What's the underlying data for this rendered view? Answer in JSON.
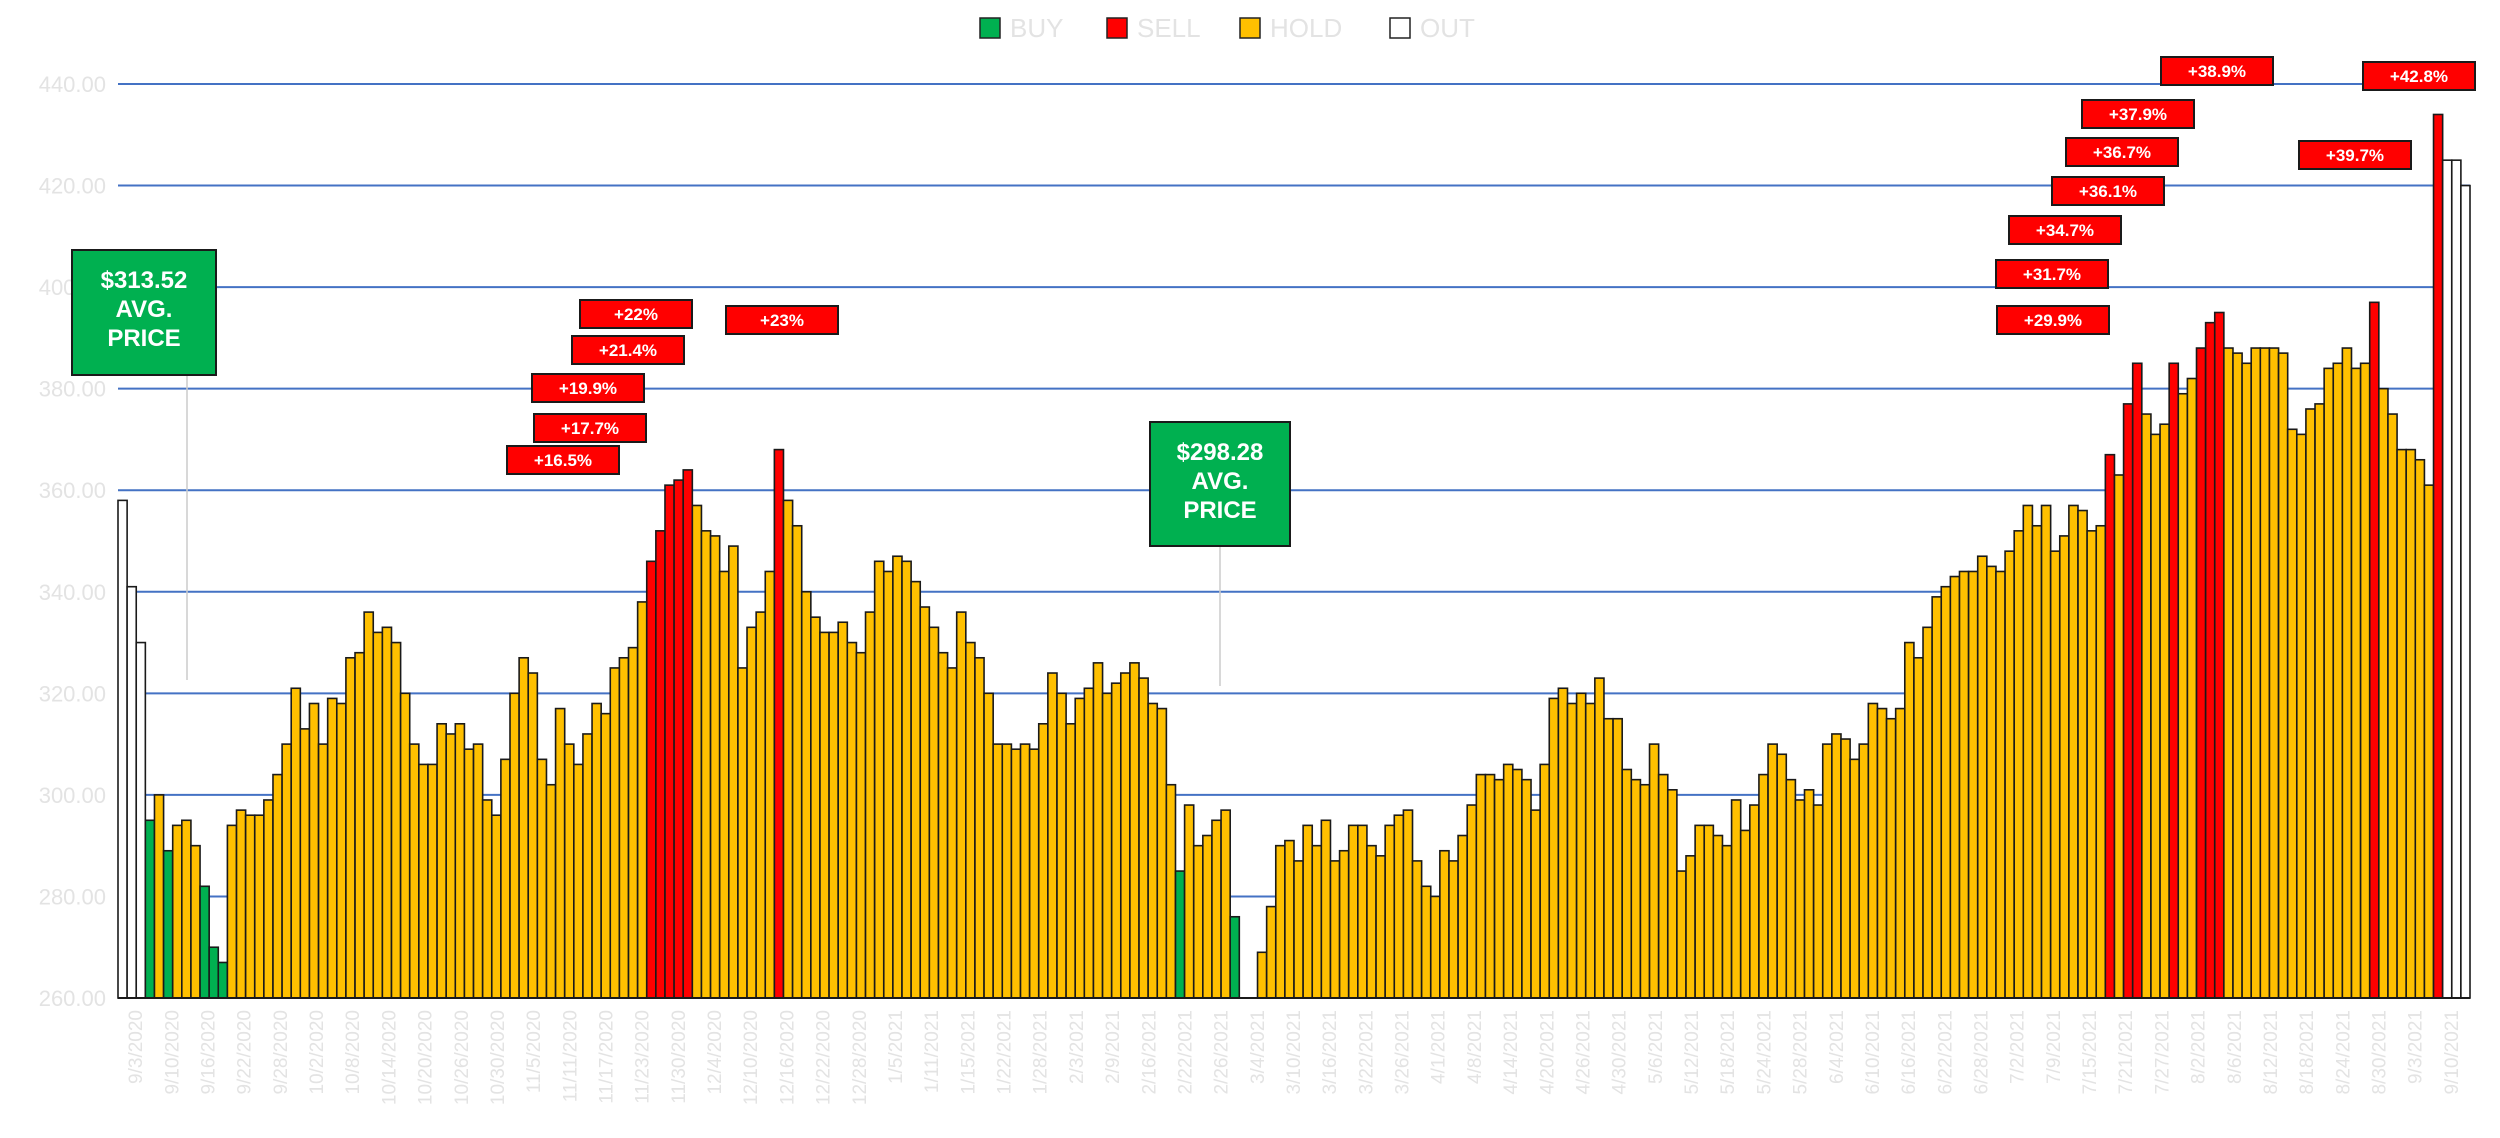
{
  "colors": {
    "buy": "#00b050",
    "sell": "#ff0000",
    "hold": "#ffc000",
    "out": "#ffffff",
    "gridline": "#4472c4",
    "tick_text": "#e3e3e3"
  },
  "legend": [
    {
      "label": "BUY",
      "status": "buy"
    },
    {
      "label": "SELL",
      "status": "sell"
    },
    {
      "label": "HOLD",
      "status": "hold"
    },
    {
      "label": "OUT",
      "status": "out"
    }
  ],
  "chart_data": {
    "type": "bar",
    "ylim": [
      260,
      440
    ],
    "y_ticks": [
      "260.00",
      "280.00",
      "300.00",
      "320.00",
      "340.00",
      "360.00",
      "380.00",
      "400.00",
      "420.00",
      "440.00"
    ],
    "x_tick_labels": [
      "9/3/2020",
      "9/10/2020",
      "9/16/2020",
      "9/22/2020",
      "9/28/2020",
      "10/2/2020",
      "10/8/2020",
      "10/14/2020",
      "10/20/2020",
      "10/26/2020",
      "10/30/2020",
      "11/5/2020",
      "11/11/2020",
      "11/17/2020",
      "11/23/2020",
      "11/30/2020",
      "12/4/2020",
      "12/10/2020",
      "12/16/2020",
      "12/22/2020",
      "12/28/2020",
      "1/5/2021",
      "1/11/2021",
      "1/15/2021",
      "1/22/2021",
      "1/28/2021",
      "2/3/2021",
      "2/9/2021",
      "2/16/2021",
      "2/22/2021",
      "2/26/2021",
      "3/4/2021",
      "3/10/2021",
      "3/16/2021",
      "3/22/2021",
      "3/26/2021",
      "4/1/2021",
      "4/8/2021",
      "4/14/2021",
      "4/20/2021",
      "4/26/2021",
      "4/30/2021",
      "5/6/2021",
      "5/12/2021",
      "5/18/2021",
      "5/24/2021",
      "5/28/2021",
      "6/4/2021",
      "6/10/2021",
      "6/16/2021",
      "6/22/2021",
      "6/28/2021",
      "7/2/2021",
      "7/9/2021",
      "7/15/2021",
      "7/21/2021",
      "7/27/2021",
      "8/2/2021",
      "8/6/2021",
      "8/12/2021",
      "8/18/2021",
      "8/24/2021",
      "8/30/2021",
      "9/3/2021",
      "9/10/2021"
    ],
    "bars": [
      {
        "v": 358,
        "s": "out"
      },
      {
        "v": 341,
        "s": "out"
      },
      {
        "v": 330,
        "s": "out"
      },
      {
        "v": 295,
        "s": "buy"
      },
      {
        "v": 300,
        "s": "hold"
      },
      {
        "v": 289,
        "s": "buy"
      },
      {
        "v": 294,
        "s": "hold"
      },
      {
        "v": 295,
        "s": "hold"
      },
      {
        "v": 290,
        "s": "hold"
      },
      {
        "v": 282,
        "s": "buy"
      },
      {
        "v": 270,
        "s": "buy"
      },
      {
        "v": 267,
        "s": "buy"
      },
      {
        "v": 294,
        "s": "hold"
      },
      {
        "v": 297,
        "s": "hold"
      },
      {
        "v": 296,
        "s": "hold"
      },
      {
        "v": 296,
        "s": "hold"
      },
      {
        "v": 299,
        "s": "hold"
      },
      {
        "v": 304,
        "s": "hold"
      },
      {
        "v": 310,
        "s": "hold"
      },
      {
        "v": 321,
        "s": "hold"
      },
      {
        "v": 313,
        "s": "hold"
      },
      {
        "v": 318,
        "s": "hold"
      },
      {
        "v": 310,
        "s": "hold"
      },
      {
        "v": 319,
        "s": "hold"
      },
      {
        "v": 318,
        "s": "hold"
      },
      {
        "v": 327,
        "s": "hold"
      },
      {
        "v": 328,
        "s": "hold"
      },
      {
        "v": 336,
        "s": "hold"
      },
      {
        "v": 332,
        "s": "hold"
      },
      {
        "v": 333,
        "s": "hold"
      },
      {
        "v": 330,
        "s": "hold"
      },
      {
        "v": 320,
        "s": "hold"
      },
      {
        "v": 310,
        "s": "hold"
      },
      {
        "v": 306,
        "s": "hold"
      },
      {
        "v": 306,
        "s": "hold"
      },
      {
        "v": 314,
        "s": "hold"
      },
      {
        "v": 312,
        "s": "hold"
      },
      {
        "v": 314,
        "s": "hold"
      },
      {
        "v": 309,
        "s": "hold"
      },
      {
        "v": 310,
        "s": "hold"
      },
      {
        "v": 299,
        "s": "hold"
      },
      {
        "v": 296,
        "s": "hold"
      },
      {
        "v": 307,
        "s": "hold"
      },
      {
        "v": 320,
        "s": "hold"
      },
      {
        "v": 327,
        "s": "hold"
      },
      {
        "v": 324,
        "s": "hold"
      },
      {
        "v": 307,
        "s": "hold"
      },
      {
        "v": 302,
        "s": "hold"
      },
      {
        "v": 317,
        "s": "hold"
      },
      {
        "v": 310,
        "s": "hold"
      },
      {
        "v": 306,
        "s": "hold"
      },
      {
        "v": 312,
        "s": "hold"
      },
      {
        "v": 318,
        "s": "hold"
      },
      {
        "v": 316,
        "s": "hold"
      },
      {
        "v": 325,
        "s": "hold"
      },
      {
        "v": 327,
        "s": "hold"
      },
      {
        "v": 329,
        "s": "hold"
      },
      {
        "v": 338,
        "s": "hold"
      },
      {
        "v": 346,
        "s": "sell"
      },
      {
        "v": 352,
        "s": "sell"
      },
      {
        "v": 361,
        "s": "sell"
      },
      {
        "v": 362,
        "s": "sell"
      },
      {
        "v": 364,
        "s": "sell"
      },
      {
        "v": 357,
        "s": "hold"
      },
      {
        "v": 352,
        "s": "hold"
      },
      {
        "v": 351,
        "s": "hold"
      },
      {
        "v": 344,
        "s": "hold"
      },
      {
        "v": 349,
        "s": "hold"
      },
      {
        "v": 325,
        "s": "hold"
      },
      {
        "v": 333,
        "s": "hold"
      },
      {
        "v": 336,
        "s": "hold"
      },
      {
        "v": 344,
        "s": "hold"
      },
      {
        "v": 368,
        "s": "sell"
      },
      {
        "v": 358,
        "s": "hold"
      },
      {
        "v": 353,
        "s": "hold"
      },
      {
        "v": 340,
        "s": "hold"
      },
      {
        "v": 335,
        "s": "hold"
      },
      {
        "v": 332,
        "s": "hold"
      },
      {
        "v": 332,
        "s": "hold"
      },
      {
        "v": 334,
        "s": "hold"
      },
      {
        "v": 330,
        "s": "hold"
      },
      {
        "v": 328,
        "s": "hold"
      },
      {
        "v": 336,
        "s": "hold"
      },
      {
        "v": 346,
        "s": "hold"
      },
      {
        "v": 344,
        "s": "hold"
      },
      {
        "v": 347,
        "s": "hold"
      },
      {
        "v": 346,
        "s": "hold"
      },
      {
        "v": 342,
        "s": "hold"
      },
      {
        "v": 337,
        "s": "hold"
      },
      {
        "v": 333,
        "s": "hold"
      },
      {
        "v": 328,
        "s": "hold"
      },
      {
        "v": 325,
        "s": "hold"
      },
      {
        "v": 336,
        "s": "hold"
      },
      {
        "v": 330,
        "s": "hold"
      },
      {
        "v": 327,
        "s": "hold"
      },
      {
        "v": 320,
        "s": "hold"
      },
      {
        "v": 310,
        "s": "hold"
      },
      {
        "v": 310,
        "s": "hold"
      },
      {
        "v": 309,
        "s": "hold"
      },
      {
        "v": 310,
        "s": "hold"
      },
      {
        "v": 309,
        "s": "hold"
      },
      {
        "v": 314,
        "s": "hold"
      },
      {
        "v": 324,
        "s": "hold"
      },
      {
        "v": 320,
        "s": "hold"
      },
      {
        "v": 314,
        "s": "hold"
      },
      {
        "v": 319,
        "s": "hold"
      },
      {
        "v": 321,
        "s": "hold"
      },
      {
        "v": 326,
        "s": "hold"
      },
      {
        "v": 320,
        "s": "hold"
      },
      {
        "v": 322,
        "s": "hold"
      },
      {
        "v": 324,
        "s": "hold"
      },
      {
        "v": 326,
        "s": "hold"
      },
      {
        "v": 323,
        "s": "hold"
      },
      {
        "v": 318,
        "s": "hold"
      },
      {
        "v": 317,
        "s": "hold"
      },
      {
        "v": 302,
        "s": "hold"
      },
      {
        "v": 285,
        "s": "buy"
      },
      {
        "v": 298,
        "s": "hold"
      },
      {
        "v": 290,
        "s": "hold"
      },
      {
        "v": 292,
        "s": "hold"
      },
      {
        "v": 295,
        "s": "hold"
      },
      {
        "v": 297,
        "s": "hold"
      },
      {
        "v": 276,
        "s": "buy"
      },
      {
        "v": 260,
        "s": "buy"
      },
      {
        "v": 249,
        "s": "buy"
      },
      {
        "v": 269,
        "s": "hold"
      },
      {
        "v": 278,
        "s": "hold"
      },
      {
        "v": 290,
        "s": "hold"
      },
      {
        "v": 291,
        "s": "hold"
      },
      {
        "v": 287,
        "s": "hold"
      },
      {
        "v": 294,
        "s": "hold"
      },
      {
        "v": 290,
        "s": "hold"
      },
      {
        "v": 295,
        "s": "hold"
      },
      {
        "v": 287,
        "s": "hold"
      },
      {
        "v": 289,
        "s": "hold"
      },
      {
        "v": 294,
        "s": "hold"
      },
      {
        "v": 294,
        "s": "hold"
      },
      {
        "v": 290,
        "s": "hold"
      },
      {
        "v": 288,
        "s": "hold"
      },
      {
        "v": 294,
        "s": "hold"
      },
      {
        "v": 296,
        "s": "hold"
      },
      {
        "v": 297,
        "s": "hold"
      },
      {
        "v": 287,
        "s": "hold"
      },
      {
        "v": 282,
        "s": "hold"
      },
      {
        "v": 280,
        "s": "hold"
      },
      {
        "v": 289,
        "s": "hold"
      },
      {
        "v": 287,
        "s": "hold"
      },
      {
        "v": 292,
        "s": "hold"
      },
      {
        "v": 298,
        "s": "hold"
      },
      {
        "v": 304,
        "s": "hold"
      },
      {
        "v": 304,
        "s": "hold"
      },
      {
        "v": 303,
        "s": "hold"
      },
      {
        "v": 306,
        "s": "hold"
      },
      {
        "v": 305,
        "s": "hold"
      },
      {
        "v": 303,
        "s": "hold"
      },
      {
        "v": 297,
        "s": "hold"
      },
      {
        "v": 306,
        "s": "hold"
      },
      {
        "v": 319,
        "s": "hold"
      },
      {
        "v": 321,
        "s": "hold"
      },
      {
        "v": 318,
        "s": "hold"
      },
      {
        "v": 320,
        "s": "hold"
      },
      {
        "v": 318,
        "s": "hold"
      },
      {
        "v": 323,
        "s": "hold"
      },
      {
        "v": 315,
        "s": "hold"
      },
      {
        "v": 315,
        "s": "hold"
      },
      {
        "v": 305,
        "s": "hold"
      },
      {
        "v": 303,
        "s": "hold"
      },
      {
        "v": 302,
        "s": "hold"
      },
      {
        "v": 310,
        "s": "hold"
      },
      {
        "v": 304,
        "s": "hold"
      },
      {
        "v": 301,
        "s": "hold"
      },
      {
        "v": 285,
        "s": "hold"
      },
      {
        "v": 288,
        "s": "hold"
      },
      {
        "v": 294,
        "s": "hold"
      },
      {
        "v": 294,
        "s": "hold"
      },
      {
        "v": 292,
        "s": "hold"
      },
      {
        "v": 290,
        "s": "hold"
      },
      {
        "v": 299,
        "s": "hold"
      },
      {
        "v": 293,
        "s": "hold"
      },
      {
        "v": 298,
        "s": "hold"
      },
      {
        "v": 304,
        "s": "hold"
      },
      {
        "v": 310,
        "s": "hold"
      },
      {
        "v": 308,
        "s": "hold"
      },
      {
        "v": 303,
        "s": "hold"
      },
      {
        "v": 299,
        "s": "hold"
      },
      {
        "v": 301,
        "s": "hold"
      },
      {
        "v": 298,
        "s": "hold"
      },
      {
        "v": 310,
        "s": "hold"
      },
      {
        "v": 312,
        "s": "hold"
      },
      {
        "v": 311,
        "s": "hold"
      },
      {
        "v": 307,
        "s": "hold"
      },
      {
        "v": 310,
        "s": "hold"
      },
      {
        "v": 318,
        "s": "hold"
      },
      {
        "v": 317,
        "s": "hold"
      },
      {
        "v": 315,
        "s": "hold"
      },
      {
        "v": 317,
        "s": "hold"
      },
      {
        "v": 330,
        "s": "hold"
      },
      {
        "v": 327,
        "s": "hold"
      },
      {
        "v": 333,
        "s": "hold"
      },
      {
        "v": 339,
        "s": "hold"
      },
      {
        "v": 341,
        "s": "hold"
      },
      {
        "v": 343,
        "s": "hold"
      },
      {
        "v": 344,
        "s": "hold"
      },
      {
        "v": 344,
        "s": "hold"
      },
      {
        "v": 347,
        "s": "hold"
      },
      {
        "v": 345,
        "s": "hold"
      },
      {
        "v": 344,
        "s": "hold"
      },
      {
        "v": 348,
        "s": "hold"
      },
      {
        "v": 352,
        "s": "hold"
      },
      {
        "v": 357,
        "s": "hold"
      },
      {
        "v": 353,
        "s": "hold"
      },
      {
        "v": 357,
        "s": "hold"
      },
      {
        "v": 348,
        "s": "hold"
      },
      {
        "v": 351,
        "s": "hold"
      },
      {
        "v": 357,
        "s": "hold"
      },
      {
        "v": 356,
        "s": "hold"
      },
      {
        "v": 352,
        "s": "hold"
      },
      {
        "v": 353,
        "s": "hold"
      },
      {
        "v": 367,
        "s": "sell"
      },
      {
        "v": 363,
        "s": "hold"
      },
      {
        "v": 377,
        "s": "sell"
      },
      {
        "v": 385,
        "s": "sell"
      },
      {
        "v": 375,
        "s": "hold"
      },
      {
        "v": 371,
        "s": "hold"
      },
      {
        "v": 373,
        "s": "hold"
      },
      {
        "v": 385,
        "s": "sell"
      },
      {
        "v": 379,
        "s": "hold"
      },
      {
        "v": 382,
        "s": "hold"
      },
      {
        "v": 388,
        "s": "sell"
      },
      {
        "v": 393,
        "s": "sell"
      },
      {
        "v": 395,
        "s": "sell"
      },
      {
        "v": 388,
        "s": "hold"
      },
      {
        "v": 387,
        "s": "hold"
      },
      {
        "v": 385,
        "s": "hold"
      },
      {
        "v": 388,
        "s": "hold"
      },
      {
        "v": 388,
        "s": "hold"
      },
      {
        "v": 388,
        "s": "hold"
      },
      {
        "v": 387,
        "s": "hold"
      },
      {
        "v": 372,
        "s": "hold"
      },
      {
        "v": 371,
        "s": "hold"
      },
      {
        "v": 376,
        "s": "hold"
      },
      {
        "v": 377,
        "s": "hold"
      },
      {
        "v": 384,
        "s": "hold"
      },
      {
        "v": 385,
        "s": "hold"
      },
      {
        "v": 388,
        "s": "hold"
      },
      {
        "v": 384,
        "s": "hold"
      },
      {
        "v": 385,
        "s": "hold"
      },
      {
        "v": 397,
        "s": "sell"
      },
      {
        "v": 380,
        "s": "hold"
      },
      {
        "v": 375,
        "s": "hold"
      },
      {
        "v": 368,
        "s": "hold"
      },
      {
        "v": 368,
        "s": "hold"
      },
      {
        "v": 366,
        "s": "hold"
      },
      {
        "v": 361,
        "s": "hold"
      },
      {
        "v": 434,
        "s": "sell"
      },
      {
        "v": 425,
        "s": "out"
      },
      {
        "v": 425,
        "s": "out"
      },
      {
        "v": 420,
        "s": "out"
      }
    ],
    "sell_annotations": [
      "+16.5%",
      "+17.7%",
      "+19.9%",
      "+21.4%",
      "+22%",
      "+23%",
      "+29.9%",
      "+31.7%",
      "+34.7%",
      "+36.1%",
      "+36.7%",
      "+37.9%",
      "+38.9%",
      "+39.7%",
      "+42.8%"
    ],
    "avg_price_annotations": [
      {
        "price": "$313.52",
        "line2": "AVG.",
        "line3": "PRICE"
      },
      {
        "price": "$298.28",
        "line2": "AVG.",
        "line3": "PRICE"
      }
    ]
  }
}
